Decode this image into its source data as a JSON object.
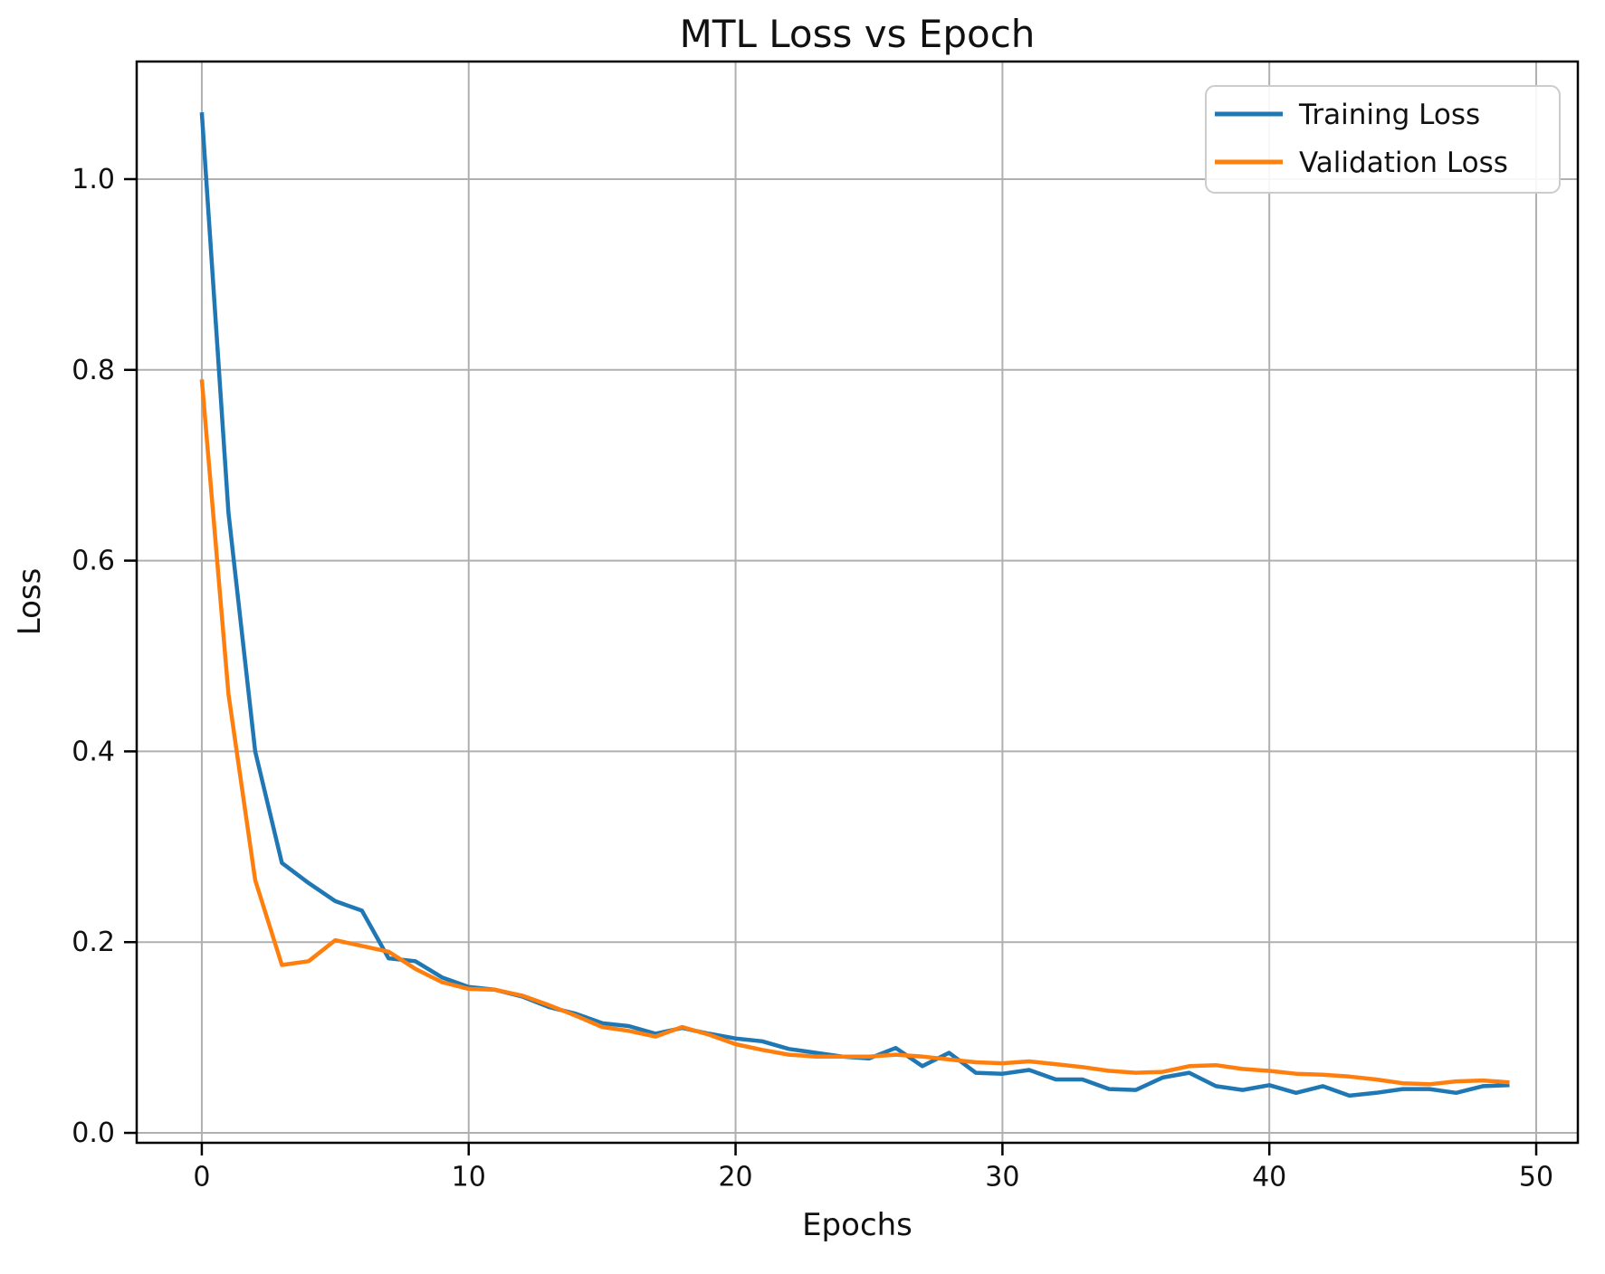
{
  "chart_data": {
    "type": "line",
    "title": "MTL Loss vs Epoch",
    "xlabel": "Epochs",
    "ylabel": "Loss",
    "grid": true,
    "legend_position": "upper right",
    "x": [
      0,
      1,
      2,
      3,
      4,
      5,
      6,
      7,
      8,
      9,
      10,
      11,
      12,
      13,
      14,
      15,
      16,
      17,
      18,
      19,
      20,
      21,
      22,
      23,
      24,
      25,
      26,
      27,
      28,
      29,
      30,
      31,
      32,
      33,
      34,
      35,
      36,
      37,
      38,
      39,
      40,
      41,
      42,
      43,
      44,
      45,
      46,
      47,
      48,
      49
    ],
    "series": [
      {
        "name": "Training Loss",
        "color": "#1f77b4",
        "values": [
          1.07,
          0.65,
          0.4,
          0.283,
          0.262,
          0.243,
          0.233,
          0.183,
          0.18,
          0.163,
          0.153,
          0.15,
          0.143,
          0.132,
          0.125,
          0.115,
          0.112,
          0.104,
          0.11,
          0.104,
          0.099,
          0.096,
          0.088,
          0.084,
          0.08,
          0.078,
          0.089,
          0.07,
          0.084,
          0.063,
          0.062,
          0.066,
          0.056,
          0.056,
          0.046,
          0.045,
          0.058,
          0.063,
          0.049,
          0.045,
          0.05,
          0.042,
          0.049,
          0.039,
          0.042,
          0.046,
          0.046,
          0.042,
          0.049,
          0.05
        ]
      },
      {
        "name": "Validation Loss",
        "color": "#ff7f0e",
        "values": [
          0.79,
          0.46,
          0.265,
          0.176,
          0.18,
          0.202,
          0.196,
          0.19,
          0.172,
          0.158,
          0.151,
          0.15,
          0.144,
          0.134,
          0.123,
          0.111,
          0.107,
          0.101,
          0.111,
          0.103,
          0.093,
          0.087,
          0.082,
          0.08,
          0.08,
          0.08,
          0.082,
          0.08,
          0.077,
          0.074,
          0.073,
          0.075,
          0.072,
          0.069,
          0.065,
          0.063,
          0.064,
          0.07,
          0.071,
          0.067,
          0.065,
          0.062,
          0.061,
          0.059,
          0.056,
          0.052,
          0.051,
          0.054,
          0.055,
          0.053
        ]
      }
    ],
    "xticks": {
      "values": [
        0,
        10,
        20,
        30,
        40,
        50
      ],
      "labels": [
        "0",
        "10",
        "20",
        "30",
        "40",
        "50"
      ]
    },
    "yticks": {
      "values": [
        0.0,
        0.2,
        0.4,
        0.6,
        0.8,
        1.0
      ],
      "labels": [
        "0.0",
        "0.2",
        "0.4",
        "0.6",
        "0.8",
        "1.0"
      ]
    },
    "xlim": [
      -2.44,
      51.56
    ],
    "ylim": [
      -0.0104,
      1.1233
    ],
    "colors": {
      "background": "#ffffff",
      "grid": "#b0b0b0",
      "spine": "#000000",
      "text": "#111111",
      "legend_border": "#cccccc",
      "legend_fill": "#ffffff"
    }
  }
}
